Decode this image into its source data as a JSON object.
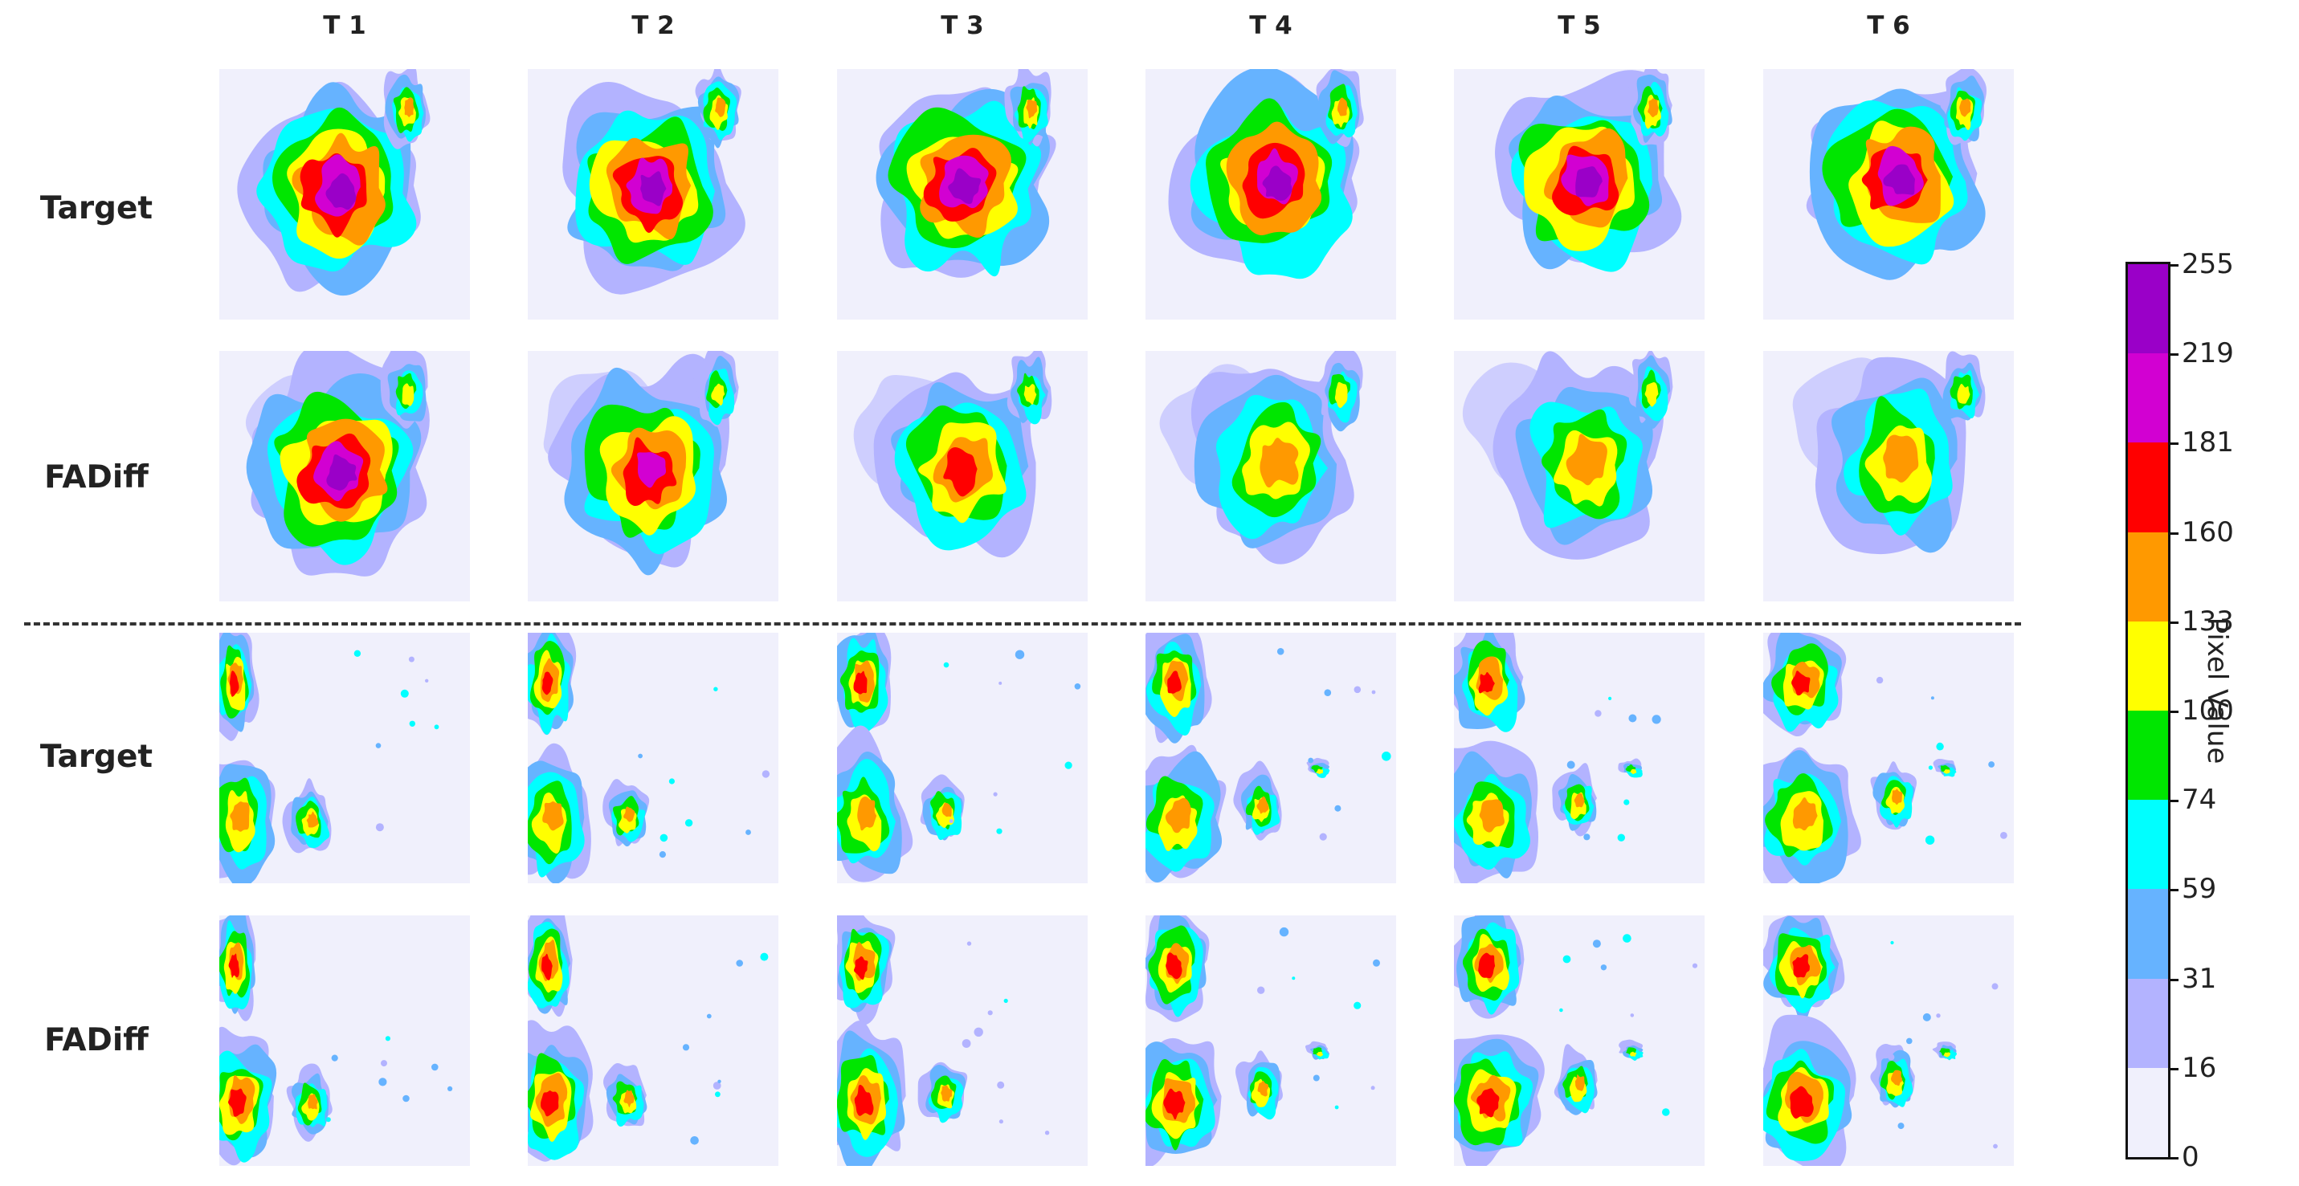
{
  "columns": [
    "T 1",
    "T 2",
    "T 3",
    "T 4",
    "T 5",
    "T 6"
  ],
  "rows": [
    "Target",
    "FADiff",
    "Target",
    "FADiff"
  ],
  "colorbar": {
    "title": "Pixel Value",
    "ticks": [
      "255",
      "219",
      "181",
      "160",
      "133",
      "100",
      "74",
      "59",
      "31",
      "16",
      "0"
    ],
    "colors": [
      "#9a00c8",
      "#d200d2",
      "#ff0000",
      "#ff9900",
      "#ffff00",
      "#00e600",
      "#00ffff",
      "#66b3ff",
      "#b3b3ff",
      "#f0f0fc"
    ]
  }
}
